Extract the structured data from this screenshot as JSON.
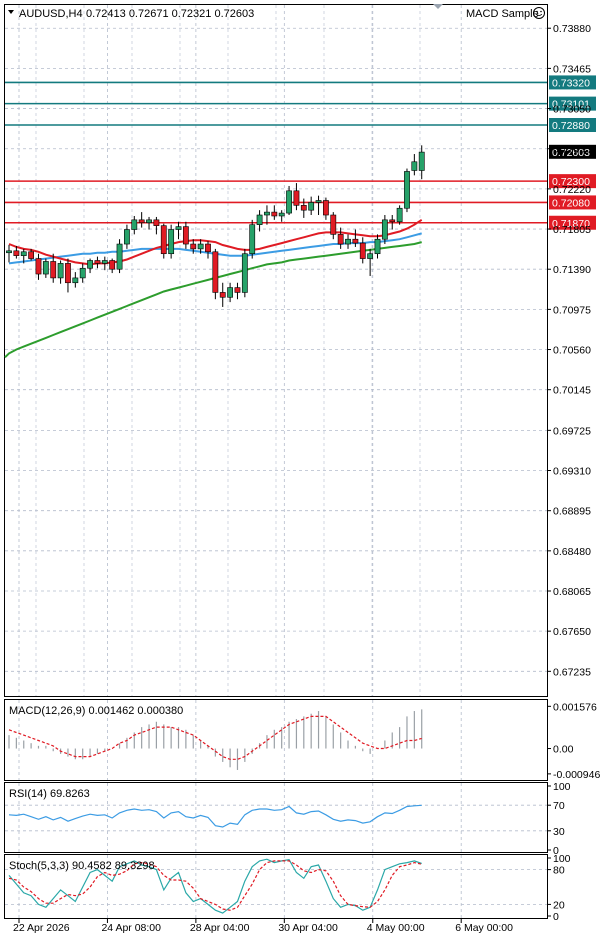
{
  "header": {
    "symbol": "AUDUSD,H4",
    "ohlc": "0.72413 0.72671 0.72321 0.72603",
    "expert": "MACD Sample",
    "expert_icon": "smiley-icon"
  },
  "colors": {
    "bull": "#26a269",
    "bear": "#e01b24",
    "level_support": "#e01b24",
    "level_resistance": "#137a7f",
    "ma_fast": "#e01b24",
    "ma_mid": "#3c9ce4",
    "ma_slow": "#2d9d2d",
    "grid": "#b4bccc",
    "indicator_line": "#3c9ce4"
  },
  "chart_data": [
    {
      "type": "candlestick",
      "symbol": "AUDUSD",
      "timeframe": "H4",
      "ylim": [
        0.6698,
        0.7412
      ],
      "y_ticks": [
        "0.73880",
        "0.73465",
        "0.73050",
        "0.72635",
        "0.72220",
        "0.71805",
        "0.71390",
        "0.70975",
        "0.70560",
        "0.70145",
        "0.69725",
        "0.69310",
        "0.68895",
        "0.68480",
        "0.68065",
        "0.67650",
        "0.67235"
      ],
      "x_labels": [
        "22 Apr 2026",
        "24 Apr 08:00",
        "28 Apr 04:00",
        "30 Apr 04:00",
        "4 May 00:00",
        "6 May 00:00"
      ],
      "x_label_index": [
        0,
        12,
        24,
        36,
        48,
        60
      ],
      "current_price": "0.72603",
      "price_levels": [
        {
          "label": "0.73320",
          "value": 0.7332,
          "role": "resistance"
        },
        {
          "label": "0.73101",
          "value": 0.73101,
          "role": "resistance"
        },
        {
          "label": "0.72880",
          "value": 0.7288,
          "role": "resistance"
        },
        {
          "label": "0.72300",
          "value": 0.723,
          "role": "support"
        },
        {
          "label": "0.72080",
          "value": 0.7208,
          "role": "support"
        },
        {
          "label": "0.71870",
          "value": 0.7187,
          "role": "support"
        }
      ],
      "candles": [
        [
          0.7156,
          0.7164,
          0.7146,
          0.7158
        ],
        [
          0.7158,
          0.7163,
          0.715,
          0.7153
        ],
        [
          0.7153,
          0.716,
          0.7145,
          0.7157
        ],
        [
          0.7157,
          0.716,
          0.7148,
          0.715
        ],
        [
          0.715,
          0.7155,
          0.7128,
          0.7134
        ],
        [
          0.7134,
          0.715,
          0.713,
          0.7147
        ],
        [
          0.7147,
          0.7155,
          0.7125,
          0.713
        ],
        [
          0.713,
          0.7148,
          0.7124,
          0.7145
        ],
        [
          0.7145,
          0.715,
          0.7115,
          0.7125
        ],
        [
          0.7125,
          0.7136,
          0.712,
          0.713
        ],
        [
          0.713,
          0.7145,
          0.7125,
          0.714
        ],
        [
          0.714,
          0.715,
          0.7135,
          0.7148
        ],
        [
          0.7148,
          0.7152,
          0.714,
          0.7145
        ],
        [
          0.7145,
          0.7152,
          0.7138,
          0.7148
        ],
        [
          0.7148,
          0.715,
          0.7135,
          0.7139
        ],
        [
          0.7139,
          0.717,
          0.7135,
          0.7165
        ],
        [
          0.7165,
          0.7185,
          0.716,
          0.718
        ],
        [
          0.718,
          0.7194,
          0.7175,
          0.719
        ],
        [
          0.719,
          0.7198,
          0.7182,
          0.7187
        ],
        [
          0.7187,
          0.7193,
          0.718,
          0.719
        ],
        [
          0.719,
          0.7193,
          0.7175,
          0.7184
        ],
        [
          0.7184,
          0.7186,
          0.715,
          0.7155
        ],
        [
          0.7155,
          0.7185,
          0.715,
          0.718
        ],
        [
          0.718,
          0.7188,
          0.717,
          0.7183
        ],
        [
          0.7183,
          0.7188,
          0.716,
          0.7165
        ],
        [
          0.7165,
          0.717,
          0.7155,
          0.716
        ],
        [
          0.716,
          0.717,
          0.7155,
          0.7165
        ],
        [
          0.7165,
          0.7168,
          0.715,
          0.7157
        ],
        [
          0.7157,
          0.716,
          0.7108,
          0.7115
        ],
        [
          0.7115,
          0.7125,
          0.71,
          0.711
        ],
        [
          0.711,
          0.7125,
          0.7105,
          0.712
        ],
        [
          0.712,
          0.7125,
          0.7108,
          0.7115
        ],
        [
          0.7115,
          0.716,
          0.711,
          0.7155
        ],
        [
          0.7155,
          0.719,
          0.715,
          0.7185
        ],
        [
          0.7185,
          0.72,
          0.7178,
          0.7195
        ],
        [
          0.7195,
          0.7205,
          0.7185,
          0.7198
        ],
        [
          0.7198,
          0.7205,
          0.719,
          0.7194
        ],
        [
          0.7194,
          0.72,
          0.7188,
          0.7197
        ],
        [
          0.7197,
          0.7225,
          0.7195,
          0.722
        ],
        [
          0.722,
          0.7228,
          0.72,
          0.7205
        ],
        [
          0.7205,
          0.7212,
          0.7192,
          0.72
        ],
        [
          0.72,
          0.7214,
          0.7195,
          0.7208
        ],
        [
          0.7208,
          0.7215,
          0.7195,
          0.721
        ],
        [
          0.721,
          0.7213,
          0.719,
          0.7195
        ],
        [
          0.7195,
          0.7198,
          0.717,
          0.7175
        ],
        [
          0.7175,
          0.7182,
          0.716,
          0.7165
        ],
        [
          0.7165,
          0.7175,
          0.716,
          0.717
        ],
        [
          0.717,
          0.718,
          0.7162,
          0.7166
        ],
        [
          0.7166,
          0.7172,
          0.7145,
          0.715
        ],
        [
          0.715,
          0.716,
          0.7132,
          0.7155
        ],
        [
          0.7155,
          0.7175,
          0.715,
          0.717
        ],
        [
          0.717,
          0.7195,
          0.7165,
          0.719
        ],
        [
          0.719,
          0.7195,
          0.718,
          0.7188
        ],
        [
          0.7188,
          0.7205,
          0.7185,
          0.7202
        ],
        [
          0.7202,
          0.7243,
          0.7198,
          0.724
        ],
        [
          0.7241,
          0.7258,
          0.7236,
          0.725
        ],
        [
          0.7241,
          0.7267,
          0.7232,
          0.726
        ]
      ],
      "ma_fast": [
        0.7165,
        0.7162,
        0.716,
        0.7159,
        0.7157,
        0.7154,
        0.7152,
        0.715,
        0.7148,
        0.7146,
        0.7145,
        0.7144,
        0.7145,
        0.7145,
        0.7146,
        0.7147,
        0.7149,
        0.7152,
        0.7155,
        0.7158,
        0.7161,
        0.7163,
        0.7165,
        0.7167,
        0.7168,
        0.7169,
        0.7169,
        0.7168,
        0.7167,
        0.7164,
        0.7162,
        0.716,
        0.7159,
        0.7159,
        0.716,
        0.7162,
        0.7164,
        0.7166,
        0.7168,
        0.717,
        0.7172,
        0.7174,
        0.7176,
        0.7177,
        0.7177,
        0.7177,
        0.7176,
        0.7175,
        0.7174,
        0.7173,
        0.7173,
        0.7174,
        0.7176,
        0.7178,
        0.7181,
        0.7185,
        0.719
      ],
      "ma_mid": [
        0.7145,
        0.7146,
        0.7147,
        0.7148,
        0.7149,
        0.715,
        0.7151,
        0.7152,
        0.7153,
        0.7154,
        0.7155,
        0.7155,
        0.7156,
        0.7156,
        0.7157,
        0.7157,
        0.7158,
        0.7159,
        0.716,
        0.716,
        0.716,
        0.716,
        0.716,
        0.716,
        0.7159,
        0.7158,
        0.7157,
        0.7156,
        0.7155,
        0.7154,
        0.7153,
        0.7153,
        0.7153,
        0.7154,
        0.7155,
        0.7156,
        0.7157,
        0.7158,
        0.7159,
        0.716,
        0.7161,
        0.7162,
        0.7163,
        0.7164,
        0.7165,
        0.7165,
        0.7166,
        0.7166,
        0.7166,
        0.7167,
        0.7167,
        0.7168,
        0.7169,
        0.717,
        0.7172,
        0.7174,
        0.7176
      ],
      "ma_slow": [
        0.7052,
        0.7056,
        0.7059,
        0.7062,
        0.7065,
        0.7068,
        0.7071,
        0.7074,
        0.7077,
        0.708,
        0.7083,
        0.7086,
        0.7089,
        0.7092,
        0.7095,
        0.7098,
        0.7101,
        0.7104,
        0.7107,
        0.711,
        0.7113,
        0.7116,
        0.7118,
        0.712,
        0.7122,
        0.7124,
        0.7126,
        0.7128,
        0.713,
        0.7132,
        0.7134,
        0.7136,
        0.7138,
        0.714,
        0.7142,
        0.7144,
        0.7145,
        0.7146,
        0.7148,
        0.7149,
        0.715,
        0.7151,
        0.7152,
        0.7153,
        0.7154,
        0.7155,
        0.7156,
        0.7157,
        0.7158,
        0.7159,
        0.716,
        0.7161,
        0.7162,
        0.7163,
        0.7164,
        0.7165,
        0.7167
      ]
    },
    {
      "type": "bar",
      "title": "MACD(12,26,9) 0.001462 0.000380",
      "y_ticks": [
        "0.001576",
        "0.00",
        "-0.000946"
      ],
      "ylim": [
        -0.0011,
        0.0017
      ],
      "histogram": [
        0.0005,
        0.0004,
        0.0003,
        0.0002,
        0.0001,
        0.0001,
        -0.0001,
        -0.0002,
        -0.0003,
        -0.0004,
        -0.0004,
        -0.0003,
        -0.0002,
        -0.0001,
        0.0,
        0.0002,
        0.0004,
        0.0006,
        0.0008,
        0.0009,
        0.001,
        0.0009,
        0.0008,
        0.0008,
        0.0007,
        0.0005,
        0.0003,
        0.0001,
        -0.0003,
        -0.0005,
        -0.0007,
        -0.0008,
        -0.0005,
        -0.0002,
        0.0002,
        0.0005,
        0.0007,
        0.0008,
        0.001,
        0.0011,
        0.0012,
        0.0013,
        0.0014,
        0.0012,
        0.0009,
        0.0006,
        0.0003,
        0.0001,
        -0.0001,
        -0.0002,
        0.0,
        0.0003,
        0.0006,
        0.0008,
        0.0012,
        0.0014,
        0.001462
      ],
      "signal": [
        0.0007,
        0.0006,
        0.0005,
        0.0004,
        0.0003,
        0.0002,
        0.0001,
        -0.0001,
        -0.0002,
        -0.0003,
        -0.0003,
        -0.0003,
        -0.0002,
        -0.0001,
        0.0,
        0.0002,
        0.0003,
        0.0005,
        0.0006,
        0.0007,
        0.0008,
        0.0008,
        0.0008,
        0.0007,
        0.0006,
        0.0005,
        0.0003,
        0.0001,
        -0.0001,
        -0.0003,
        -0.0004,
        -0.0004,
        -0.0003,
        -0.0001,
        0.0001,
        0.0003,
        0.0005,
        0.0007,
        0.0009,
        0.001,
        0.0011,
        0.0012,
        0.0012,
        0.0012,
        0.001,
        0.0008,
        0.0006,
        0.0004,
        0.0002,
        0.0001,
        0.0,
        0.0,
        0.0001,
        0.0002,
        0.0003,
        0.0003,
        0.00038
      ]
    },
    {
      "type": "line",
      "title": "RSI(14) 69.8263",
      "y_ticks": [
        "100",
        "70",
        "30",
        "0"
      ],
      "ylim": [
        0,
        100
      ],
      "values": [
        55,
        54,
        56,
        52,
        48,
        52,
        47,
        51,
        45,
        49,
        53,
        56,
        54,
        55,
        50,
        58,
        62,
        64,
        62,
        63,
        60,
        50,
        58,
        60,
        52,
        50,
        54,
        51,
        38,
        36,
        42,
        40,
        55,
        62,
        64,
        64,
        62,
        63,
        68,
        58,
        56,
        60,
        61,
        55,
        48,
        45,
        47,
        46,
        42,
        44,
        52,
        58,
        57,
        62,
        68,
        69,
        69.8263
      ]
    },
    {
      "type": "line",
      "title": "Stoch(5,3,3) 90.4582 89.3298",
      "y_ticks": [
        "100",
        "80",
        "20",
        "0"
      ],
      "ylim": [
        0,
        100
      ],
      "main": [
        70,
        55,
        40,
        35,
        20,
        15,
        30,
        45,
        35,
        25,
        50,
        75,
        80,
        70,
        60,
        85,
        90,
        95,
        88,
        85,
        80,
        45,
        65,
        75,
        40,
        25,
        30,
        20,
        10,
        5,
        15,
        25,
        60,
        85,
        95,
        98,
        92,
        95,
        97,
        75,
        65,
        85,
        88,
        60,
        30,
        15,
        20,
        18,
        10,
        15,
        45,
        80,
        85,
        90,
        92,
        95,
        90.4582
      ],
      "signal": [
        65,
        62,
        50,
        42,
        30,
        22,
        22,
        30,
        37,
        35,
        38,
        50,
        68,
        75,
        70,
        72,
        78,
        90,
        92,
        90,
        85,
        70,
        62,
        62,
        60,
        48,
        30,
        25,
        20,
        12,
        10,
        15,
        35,
        55,
        80,
        92,
        95,
        95,
        95,
        88,
        78,
        75,
        80,
        78,
        60,
        35,
        20,
        18,
        16,
        15,
        25,
        45,
        70,
        85,
        88,
        92,
        89.3298
      ]
    }
  ]
}
